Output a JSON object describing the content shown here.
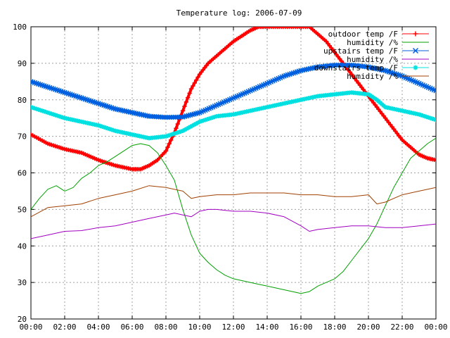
{
  "chart_data": {
    "type": "line",
    "title": "Temperature log: 2006-07-09",
    "xlabel": "",
    "ylabel": "",
    "xlim": [
      0,
      24
    ],
    "ylim": [
      20,
      100
    ],
    "grid": true,
    "legend_position": "top-right",
    "x_ticks": [
      "00:00",
      "02:00",
      "04:00",
      "06:00",
      "08:00",
      "10:00",
      "12:00",
      "14:00",
      "16:00",
      "18:00",
      "20:00",
      "22:00",
      "00:00"
    ],
    "y_ticks": [
      "20",
      "30",
      "40",
      "50",
      "60",
      "70",
      "80",
      "90",
      "100"
    ],
    "series": [
      {
        "name": "outdoor temp /F",
        "color": "#ff0000",
        "marker": "plus",
        "thick": true,
        "x": [
          0,
          1,
          2,
          3,
          4,
          5,
          6,
          6.5,
          7,
          7.5,
          8,
          8.5,
          9,
          9.5,
          10,
          10.5,
          11,
          11.5,
          12,
          12.5,
          13,
          13.5,
          14,
          16.5,
          17,
          17.5,
          18,
          18.5,
          19,
          19.5,
          20,
          20.5,
          21,
          21.5,
          22,
          22.5,
          23,
          23.5,
          24
        ],
        "y": [
          70.5,
          68,
          66.5,
          65.5,
          63.5,
          62,
          61,
          61,
          62,
          63.5,
          66,
          71,
          77,
          83,
          87,
          90,
          92,
          94,
          96,
          97.5,
          99,
          100,
          100,
          100,
          98,
          96,
          93,
          90,
          87,
          84,
          81,
          78,
          75,
          72,
          69,
          67,
          65,
          64,
          63.5
        ]
      },
      {
        "name": "humidity /%",
        "color": "#00a000",
        "marker": "none",
        "thick": false,
        "x": [
          0,
          0.5,
          1,
          1.5,
          2,
          2.5,
          3,
          3.5,
          4,
          4.5,
          5,
          5.5,
          6,
          6.5,
          7,
          7.5,
          8,
          8.5,
          9,
          9.5,
          10,
          10.5,
          11,
          11.5,
          12,
          12.5,
          13,
          13.5,
          14,
          14.5,
          15,
          15.5,
          16,
          16.5,
          17,
          17.5,
          18,
          18.5,
          19,
          19.5,
          20,
          20.5,
          21,
          21.5,
          22,
          22.5,
          23,
          23.5,
          24
        ],
        "y": [
          50,
          53,
          55.5,
          56.5,
          55,
          56,
          58.5,
          60,
          62,
          63,
          64.5,
          66,
          67.5,
          68,
          67.5,
          65.5,
          62,
          58,
          50,
          43,
          38,
          35.5,
          33.5,
          32,
          31,
          30.5,
          30,
          29.5,
          29,
          28.5,
          28,
          27.5,
          27,
          27.5,
          29,
          30,
          31,
          33,
          36,
          39,
          42,
          46,
          51,
          56,
          60,
          64,
          66,
          68,
          69.5
        ]
      },
      {
        "name": "upstairs temp /F",
        "color": "#0060e0",
        "marker": "cross",
        "thick": true,
        "x": [
          0,
          1,
          2,
          3,
          4,
          5,
          6,
          7,
          8,
          9,
          10,
          11,
          12,
          13,
          14,
          15,
          16,
          17,
          18,
          19,
          20,
          21,
          22,
          23,
          24
        ],
        "y": [
          85,
          83.5,
          82,
          80.5,
          79,
          77.5,
          76.5,
          75.5,
          75.2,
          75.3,
          76.5,
          78.5,
          80.5,
          82.5,
          84.5,
          86.5,
          88,
          89,
          89.5,
          89.5,
          89,
          88,
          86.5,
          84.5,
          82.5
        ]
      },
      {
        "name": "humidity /%",
        "color": "#a000c0",
        "marker": "none",
        "thick": false,
        "x": [
          0,
          1,
          2,
          3,
          4,
          5,
          6,
          7,
          8,
          8.5,
          9,
          9.5,
          10,
          10.5,
          11,
          12,
          13,
          14,
          15,
          16,
          16.5,
          17,
          18,
          19,
          20,
          21,
          22,
          23,
          24
        ],
        "y": [
          42,
          43,
          44,
          44.2,
          45,
          45.5,
          46.5,
          47.5,
          48.5,
          49,
          48.5,
          48,
          49.5,
          50,
          50,
          49.5,
          49.5,
          49,
          48,
          45.5,
          44,
          44.5,
          45,
          45.5,
          45.5,
          45,
          45,
          45.5,
          46
        ]
      },
      {
        "name": "downstairs temp /F",
        "color": "#00e0e0",
        "marker": "star",
        "thick": true,
        "x": [
          0,
          1,
          2,
          3,
          4,
          5,
          6,
          7,
          8,
          9,
          10,
          11,
          12,
          13,
          14,
          15,
          16,
          17,
          18,
          19,
          20,
          20.5,
          21,
          22,
          23,
          24
        ],
        "y": [
          78,
          76.5,
          75,
          74,
          73,
          71.5,
          70.5,
          69.5,
          70,
          71.5,
          74,
          75.5,
          76,
          77,
          78,
          79,
          80,
          81,
          81.5,
          82,
          81.5,
          80,
          78,
          77,
          76,
          74.5
        ]
      },
      {
        "name": "humidity /%",
        "color": "#a04000",
        "marker": "none",
        "thick": false,
        "x": [
          0,
          1,
          2,
          3,
          4,
          5,
          6,
          7,
          8,
          9,
          9.5,
          10,
          11,
          12,
          13,
          14,
          15,
          16,
          17,
          18,
          19,
          20,
          20.5,
          21,
          22,
          23,
          24
        ],
        "y": [
          48,
          50.5,
          51,
          51.5,
          53,
          54,
          55,
          56.5,
          56,
          55,
          53,
          53.5,
          54,
          54,
          54.5,
          54.5,
          54.5,
          54,
          54,
          53.5,
          53.5,
          54,
          51.5,
          52,
          54,
          55,
          56
        ]
      }
    ]
  }
}
